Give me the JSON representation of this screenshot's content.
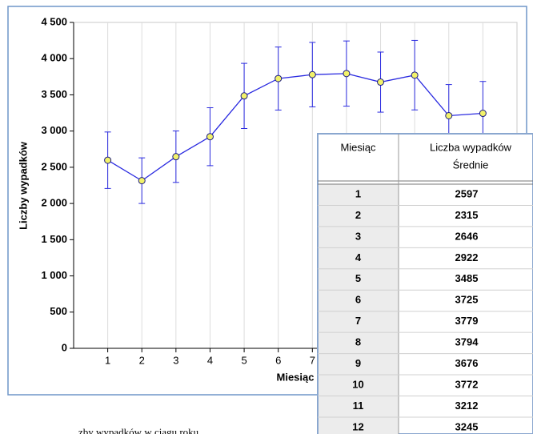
{
  "chart_data": {
    "type": "line",
    "y_label": "Liczby wypadków",
    "x_label": "Miesiąc",
    "caption": "zby wypadków w ciągu roku",
    "x": [
      1,
      2,
      3,
      4,
      5,
      6,
      7,
      8,
      9,
      10,
      11,
      12
    ],
    "series": [
      {
        "color": "#2a2ae0",
        "values": [
          2597,
          2315,
          2646,
          2922,
          3485,
          3725,
          3779,
          3794,
          3676,
          3772,
          3212,
          3245
        ],
        "errors": [
          390,
          315,
          355,
          400,
          450,
          435,
          445,
          450,
          415,
          480,
          430,
          440
        ]
      }
    ],
    "xlim": [
      0,
      13
    ],
    "xticks": [
      1,
      2,
      3,
      4,
      5,
      6,
      7,
      8,
      9,
      10,
      11,
      12
    ],
    "ylim": [
      0,
      4500
    ],
    "yticks": [
      0,
      500,
      {
        "value": 1000,
        "label": "1 000"
      },
      {
        "value": 1500,
        "label": "1 500"
      },
      {
        "value": 2000,
        "label": "2 000"
      },
      {
        "value": 2500,
        "label": "2 500"
      },
      {
        "value": 3000,
        "label": "3 000"
      },
      {
        "value": 3500,
        "label": "3 500"
      },
      {
        "value": 4000,
        "label": "4 000"
      },
      {
        "value": 4500,
        "label": "4 500"
      }
    ],
    "grid": "x",
    "table": {
      "header": [
        "Miesiąc",
        "Liczba wypadków",
        "Średnie"
      ]
    }
  }
}
